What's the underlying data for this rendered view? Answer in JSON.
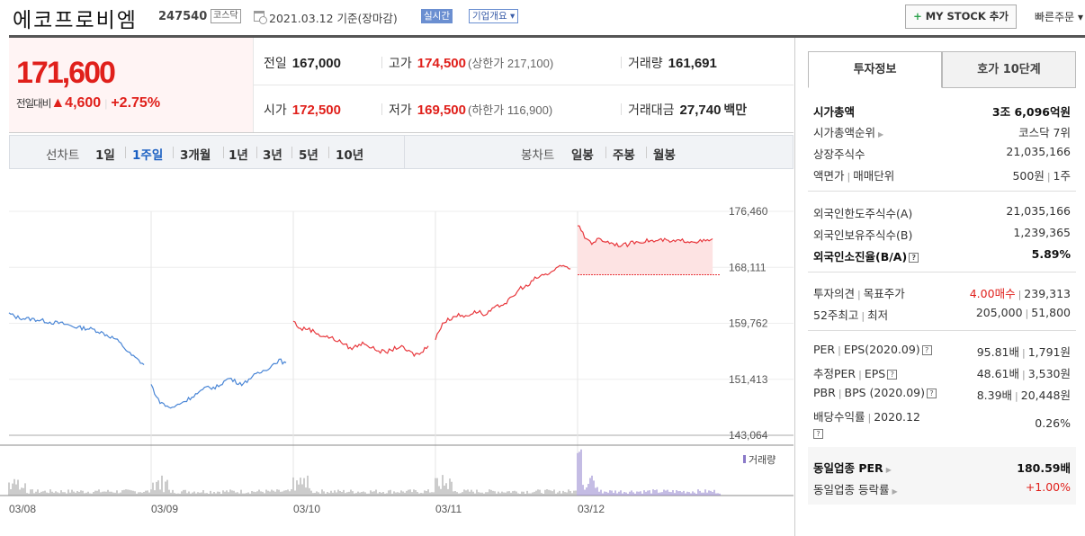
{
  "header": {
    "company_name": "에코프로비엠",
    "code": "247540",
    "market": "코스닥",
    "date_text": "2021.03.12  기준(장마감)",
    "realtime": "실시간",
    "overview": "기업개요 ▾",
    "mystock_plus": "+",
    "mystock_label": " MY STOCK 추가",
    "quick_order": "빠른주문 ▾"
  },
  "quote": {
    "price": "171,600",
    "change_label": "전일대비",
    "change_value": "▲4,600",
    "change_pct": "+2.75%",
    "prev_label": "전일",
    "prev_value": "167,000",
    "high_label": "고가",
    "high_value": "174,500",
    "upper_limit": "(상한가 217,100)",
    "volume_label": "거래량",
    "volume_value": "161,691",
    "open_label": "시가",
    "open_value": "172,500",
    "low_label": "저가",
    "low_value": "169,500",
    "lower_limit": "(하한가 116,900)",
    "amount_label": "거래대금",
    "amount_value": "27,740",
    "amount_unit": "백만"
  },
  "period_tabs": {
    "line_label": "선차트",
    "line_items": [
      "1일",
      "1주일",
      "3개월",
      "1년",
      "3년",
      "5년",
      "10년"
    ],
    "active_index": 1,
    "candle_label": "봉차트",
    "candle_items": [
      "일봉",
      "주봉",
      "월봉"
    ]
  },
  "chart_data": {
    "type": "line",
    "x_labels": [
      "03/08",
      "03/09",
      "03/10",
      "03/11",
      "03/12"
    ],
    "y_ticks": [
      "176,460",
      "168,111",
      "159,762",
      "151,413",
      "143,064"
    ],
    "ylim": [
      143064,
      176460
    ],
    "previous_close": 167000,
    "volume_legend": "거래량",
    "colors": {
      "down": "#4a86d6",
      "up": "#e8383d",
      "fill": "#fde3e3",
      "volume": "#999999",
      "volume_last": "#8a79c8"
    },
    "series": [
      {
        "day": "03/08",
        "color": "down",
        "values": [
          161200,
          160700,
          160500,
          160400,
          160300,
          160100,
          159900,
          159800,
          159600,
          159300,
          159100,
          159000,
          158800,
          158400,
          157900,
          157400,
          156400,
          155200,
          154400,
          153600
        ]
      },
      {
        "day": "03/09",
        "color": "down",
        "values": [
          150600,
          148300,
          147500,
          147100,
          147800,
          148300,
          149000,
          149600,
          150300,
          150100,
          150900,
          151600,
          151000,
          150700,
          151700,
          152200,
          152800,
          153500,
          154300,
          153700
        ]
      },
      {
        "day": "03/10",
        "color": "up",
        "values": [
          160100,
          158900,
          159000,
          158500,
          157900,
          157700,
          157300,
          156800,
          156000,
          156400,
          156900,
          156100,
          155700,
          155400,
          155900,
          156300,
          155700,
          155100,
          155300,
          156600
        ]
      },
      {
        "day": "03/11",
        "color": "up",
        "values": [
          157400,
          159800,
          160400,
          161000,
          160800,
          161200,
          161600,
          160900,
          161800,
          162400,
          162900,
          163800,
          165100,
          165300,
          166400,
          166900,
          167200,
          167900,
          168300,
          167900
        ]
      },
      {
        "day": "03/12",
        "color": "up",
        "values": [
          174500,
          172600,
          171800,
          172300,
          172000,
          171700,
          171400,
          171500,
          171900,
          172000,
          172100,
          172000,
          172200,
          171900,
          172000,
          172100,
          172000,
          172000,
          172000,
          172200
        ]
      }
    ]
  },
  "invest_tabs": [
    "투자정보",
    "호가 10단계"
  ],
  "invest": {
    "market_cap_label": "시가총액",
    "market_cap_value": "3조 6,096억원",
    "rank_label": "시가총액순위",
    "rank_value": "코스닥 7위",
    "shares_label": "상장주식수",
    "shares_value": "21,035,166",
    "par_label": "액면가",
    "par_label2": "매매단위",
    "par_value": "500원",
    "par_value2": "1주",
    "foreign_limit_label": "외국인한도주식수(A)",
    "foreign_limit_value": "21,035,166",
    "foreign_hold_label": "외국인보유주식수(B)",
    "foreign_hold_value": "1,239,365",
    "foreign_ratio_label": "외국인소진율(B/A)",
    "foreign_ratio_value": "5.89%",
    "opinion_label": "투자의견",
    "target_label": "목표주가",
    "opinion_value": "4.00매수",
    "target_value": "239,313",
    "w52_label": "52주최고",
    "w52_label2": "최저",
    "w52_high": "205,000",
    "w52_low": "51,800",
    "per_label": "PER",
    "eps_label": "EPS(2020.09)",
    "per_value": "95.81배",
    "eps_value": "1,791원",
    "fper_label": "추정PER",
    "feps_label": "EPS",
    "fper_value": "48.61배",
    "feps_value": "3,530원",
    "pbr_label": "PBR",
    "bps_label": "BPS (2020.09)",
    "pbr_value": "8.39배",
    "bps_value": "20,448원",
    "div_label": "배당수익률",
    "div_date": "2020.12",
    "div_value": "0.26%",
    "ind_per_label": "동일업종 PER",
    "ind_per_value": "180.59배",
    "ind_chg_label": "동일업종 등락률",
    "ind_chg_value": "+1.00%"
  }
}
